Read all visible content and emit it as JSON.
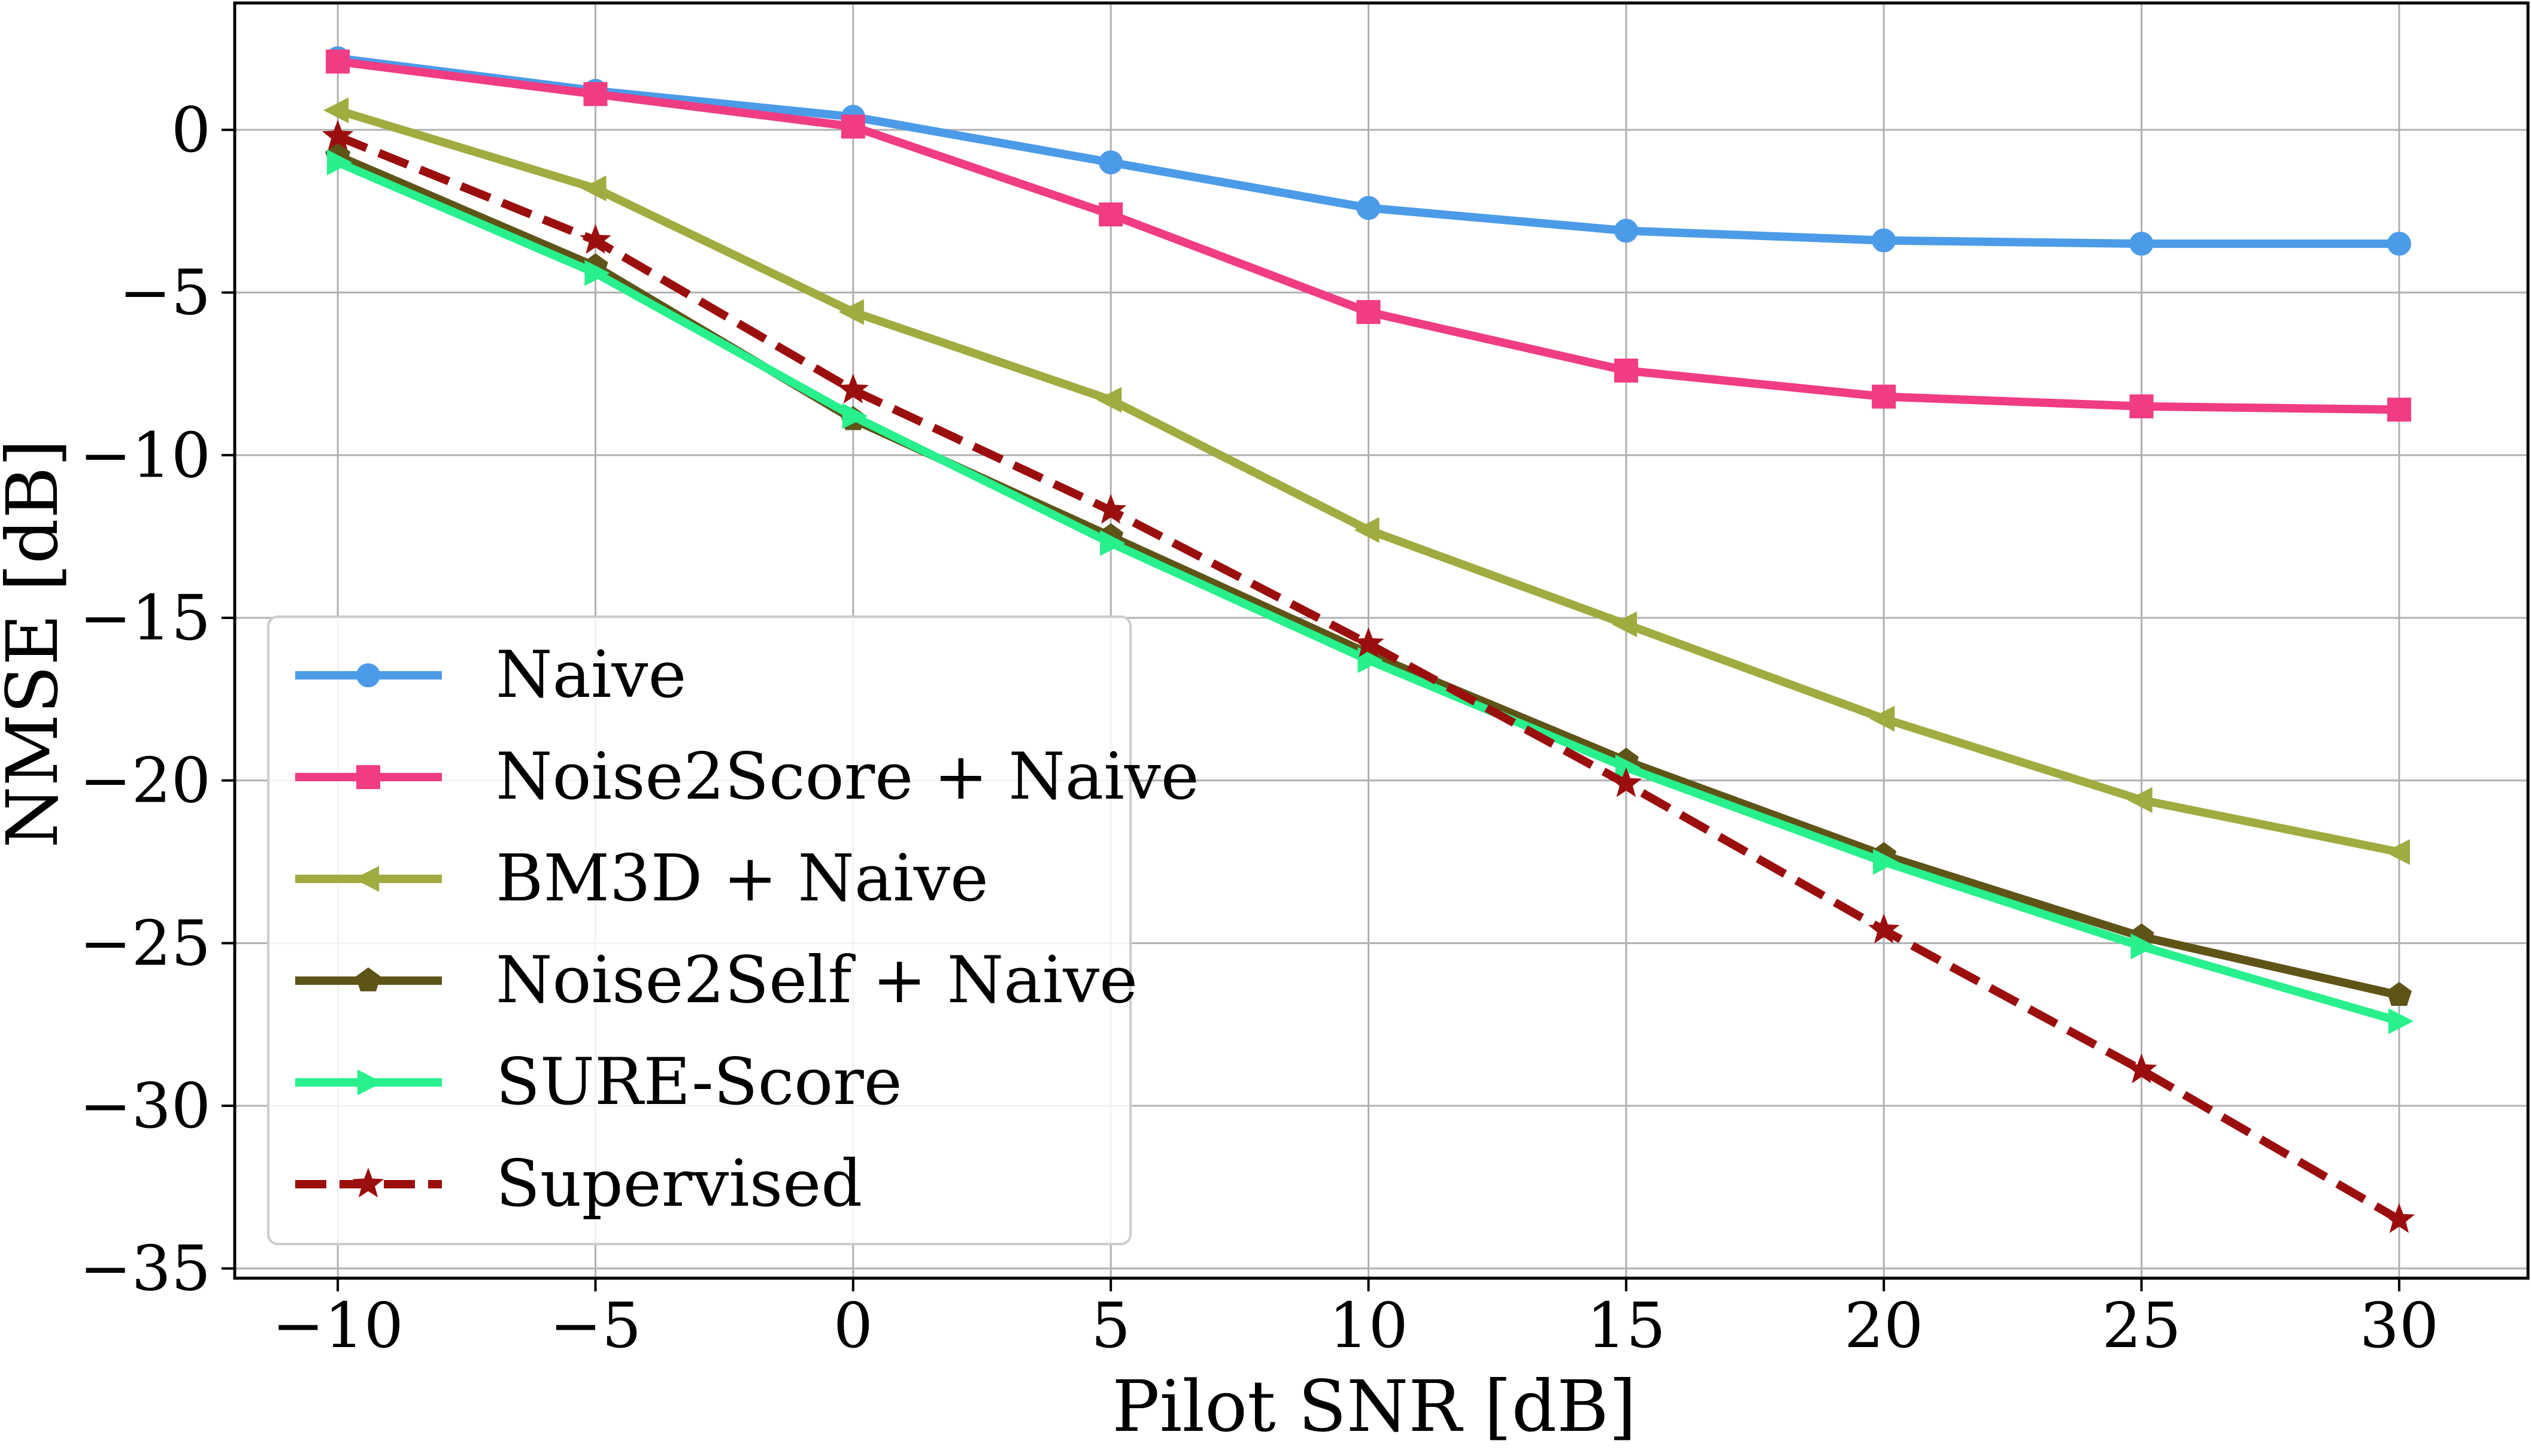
{
  "chart_data": {
    "type": "line",
    "title": "",
    "xlabel": "Pilot SNR [dB]",
    "ylabel": "NMSE [dB]",
    "x": [
      -10,
      -5,
      0,
      5,
      10,
      15,
      20,
      25,
      30
    ],
    "xlim": [
      -12,
      32.5
    ],
    "ylim": [
      -35.3,
      3.9
    ],
    "xticks": [
      -10,
      -5,
      0,
      5,
      10,
      15,
      20,
      25,
      30
    ],
    "xtick_labels": [
      "−10",
      "−5",
      "0",
      "5",
      "10",
      "15",
      "20",
      "25",
      "30"
    ],
    "yticks": [
      0,
      -5,
      -10,
      -15,
      -20,
      -25,
      -30,
      -35
    ],
    "ytick_labels": [
      "0",
      "−5",
      "−10",
      "−15",
      "−20",
      "−25",
      "−30",
      "−35"
    ],
    "grid": true,
    "legend_position": "lower-left",
    "series": [
      {
        "name": "Naive",
        "color": "#4c9be8",
        "marker": "circle",
        "dash": "solid",
        "values": [
          2.2,
          1.2,
          0.4,
          -1.0,
          -2.4,
          -3.1,
          -3.4,
          -3.5,
          -3.5
        ]
      },
      {
        "name": "Noise2Score + Naive",
        "color": "#f03c82",
        "marker": "square",
        "dash": "solid",
        "values": [
          2.1,
          1.1,
          0.1,
          -2.6,
          -5.6,
          -7.4,
          -8.2,
          -8.5,
          -8.6
        ]
      },
      {
        "name": "BM3D + Naive",
        "color": "#a0ab40",
        "marker": "triangle-left",
        "dash": "solid",
        "values": [
          0.6,
          -1.8,
          -5.6,
          -8.3,
          -12.3,
          -15.2,
          -18.1,
          -20.6,
          -22.2
        ]
      },
      {
        "name": "Noise2Self + Naive",
        "color": "#5e5418",
        "marker": "pentagon",
        "dash": "solid",
        "values": [
          -0.8,
          -4.2,
          -8.9,
          -12.5,
          -16.1,
          -19.4,
          -22.3,
          -24.8,
          -26.6
        ]
      },
      {
        "name": "SURE-Score",
        "color": "#28f08c",
        "marker": "triangle-right",
        "dash": "solid",
        "values": [
          -1.0,
          -4.4,
          -8.8,
          -12.7,
          -16.3,
          -19.6,
          -22.5,
          -25.1,
          -27.4
        ]
      },
      {
        "name": "Supervised",
        "color": "#9b0e0e",
        "marker": "star",
        "dash": "dashed",
        "values": [
          -0.2,
          -3.4,
          -8.0,
          -11.7,
          -15.8,
          -20.1,
          -24.6,
          -28.9,
          -33.5
        ]
      }
    ]
  }
}
